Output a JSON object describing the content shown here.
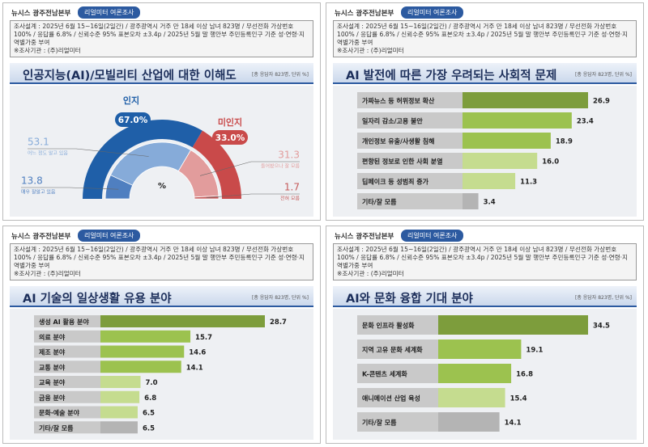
{
  "chart_data": [
    {
      "type": "semi-donut",
      "brand": "뉴시스 광주전남본부",
      "badge": "리얼미터 여론조사",
      "notes": [
        "조사설계 : 2025년 6월 15~16일(2일간) / 광주광역시 거주 만 18세 이상 남녀 823명 / 무선전화 가상번호 100% / 응답률 6.8% / 신뢰수준 95% 표본오차 ±3.4p / 2025년 5월 말 행안부 주민등록인구 기준 성·연령·지역별가중 부여",
        "※조사기관 : (주)리얼미터"
      ],
      "title": "인공지능(AI)/모빌리티 산업에 대한 이해도",
      "subtitle": "[총 응답자 823명, 단위 %]",
      "groups": {
        "names": [
          "인지",
          "미인지"
        ],
        "values": [
          67.0,
          33.0
        ],
        "value_labels": [
          "67.0%",
          "33.0%"
        ],
        "colors": [
          "#1f5fa8",
          "#c94a4a"
        ]
      },
      "categories": [
        "매우 잘알고 있음",
        "어느 정도 알고 있음",
        "들어봤으나 잘 모름",
        "전혀 모름"
      ],
      "values": [
        13.8,
        53.1,
        31.3,
        1.7
      ],
      "colors": [
        "#4f7fc0",
        "#86abd9",
        "#e29c9c",
        "#c55a5a"
      ],
      "center_label": "%"
    },
    {
      "type": "bar",
      "brand": "뉴시스 광주전남본부",
      "badge": "리얼미터 여론조사",
      "notes": [
        "조사설계 : 2025년 6월 15~16일(2일간) / 광주광역시 거주 만 18세 이상 남녀 823명 / 무선전화 가상번호 100% / 응답률 6.8% / 신뢰수준 95% 표본오차 ±3.4p / 2025년 5월 말 행안부 주민등록인구 기준 성·연령·지역별가중 부여",
        "※조사기관 : (주)리얼미터"
      ],
      "title": "AI 발전에 따른 가장 우려되는 사회적 문제",
      "subtitle": "[총 응답자 823명, 단위 %]",
      "categories": [
        "가짜뉴스 등 허위정보 확산",
        "일자리 감소/고용 불안",
        "개인정보 유출/사생활 침해",
        "편향된 정보로 인한 사회 분열",
        "딥페이크 등 성범죄 증가",
        "기타/잘 모름"
      ],
      "values": [
        26.9,
        23.4,
        18.9,
        16.0,
        11.3,
        3.4
      ],
      "value_labels": [
        "26.9",
        "23.4",
        "18.9",
        "16.0",
        "11.3",
        "3.4"
      ],
      "colors": [
        "#7d9d3c",
        "#9cc24f",
        "#9cc24f",
        "#c5dc8f",
        "#c5dc8f",
        "#b4b4b4"
      ]
    },
    {
      "type": "bar",
      "brand": "뉴시스 광주전남본부",
      "badge": "리얼미터 여론조사",
      "notes": [
        "조사설계 : 2025년 6월 15~16일(2일간) / 광주광역시 거주 만 18세 이상 남녀 823명 / 무선전화 가상번호 100% / 응답률 6.8% / 신뢰수준 95% 표본오차 ±3.4p / 2025년 5월 말 행안부 주민등록인구 기준 성·연령·지역별가중 부여",
        "※조사기관 : (주)리얼미터"
      ],
      "title": "AI 기술의 일상생활 유용 분야",
      "subtitle": "[총 응답자 823명, 단위 %]",
      "categories": [
        "생성 AI 활용 분야",
        "의료 분야",
        "제조 분야",
        "교통 분야",
        "교육 분야",
        "금융 분야",
        "문화·예술 분야",
        "기타/잘 모름"
      ],
      "values": [
        28.7,
        15.7,
        14.6,
        14.1,
        7.0,
        6.8,
        6.5,
        6.5
      ],
      "value_labels": [
        "28.7",
        "15.7",
        "14.6",
        "14.1",
        "7.0",
        "6.8",
        "6.5",
        "6.5"
      ],
      "colors": [
        "#7d9d3c",
        "#9cc24f",
        "#9cc24f",
        "#9cc24f",
        "#c5dc8f",
        "#c5dc8f",
        "#c5dc8f",
        "#b4b4b4"
      ]
    },
    {
      "type": "bar",
      "brand": "뉴시스 광주전남본부",
      "badge": "리얼미터 여론조사",
      "notes": [
        "조사설계 : 2025년 6월 15~16일(2일간) / 광주광역시 거주 만 18세 이상 남녀 823명 / 무선전화 가상번호 100% / 응답률 6.8% / 신뢰수준 95% 표본오차 ±3.4p / 2025년 5월 말 행안부 주민등록인구 기준 성·연령·지역별가중 부여",
        "※조사기관 : (주)리얼미터"
      ],
      "title": "AI와 문화 융합 기대 분야",
      "subtitle": "[총 응답자 823명, 단위 %]",
      "categories": [
        "문화 인프라 활성화",
        "지역 고유 문화 세계화",
        "K-콘텐츠 세계화",
        "애니메이션 산업 육성",
        "기타/잘 모름"
      ],
      "values": [
        34.5,
        19.1,
        16.8,
        15.4,
        14.1
      ],
      "value_labels": [
        "34.5",
        "19.1",
        "16.8",
        "15.4",
        "14.1"
      ],
      "colors": [
        "#7d9d3c",
        "#9cc24f",
        "#9cc24f",
        "#c5dc8f",
        "#b4b4b4"
      ]
    }
  ]
}
